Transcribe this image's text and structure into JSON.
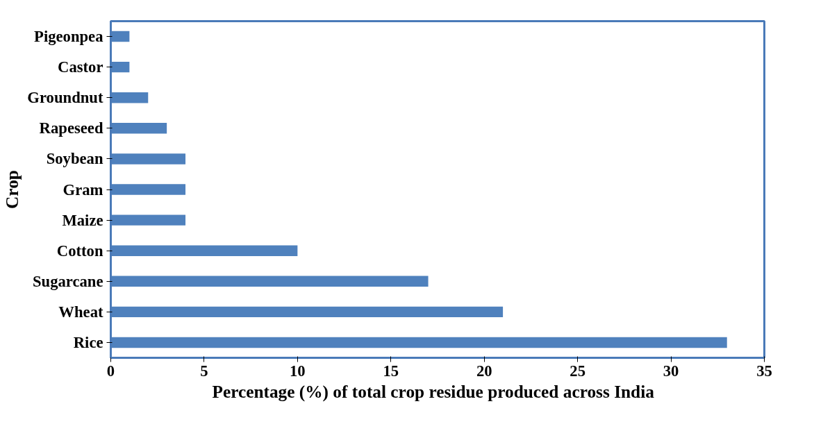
{
  "chart_data": {
    "type": "bar",
    "orientation": "horizontal",
    "categories": [
      "Pigeonpea",
      "Castor",
      "Groundnut",
      "Rapeseed",
      "Soybean",
      "Gram",
      "Maize",
      "Cotton",
      "Sugarcane",
      "Wheat",
      "Rice"
    ],
    "values": [
      1,
      1,
      2,
      3,
      4,
      4,
      4,
      10,
      17,
      21,
      33
    ],
    "color": "#4f81bd",
    "xlim": [
      0,
      35
    ],
    "xticks": [
      0,
      5,
      10,
      15,
      20,
      25,
      30,
      35
    ],
    "grid": false,
    "xlabel": "Percentage (%) of total crop residue produced  across  India",
    "ylabel": "Crop"
  }
}
